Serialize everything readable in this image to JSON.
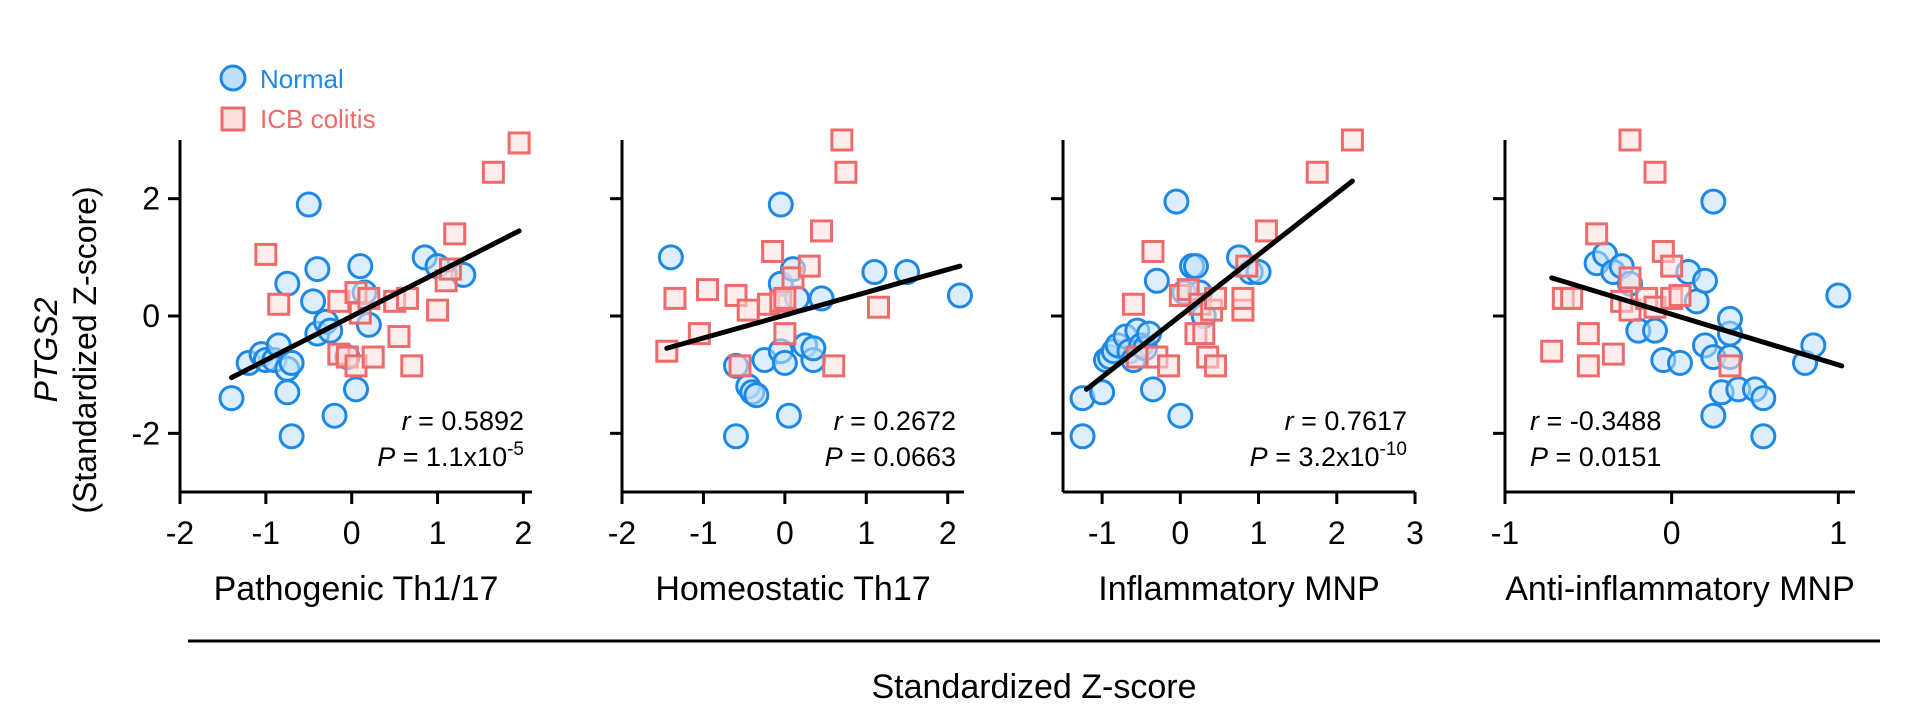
{
  "colors": {
    "normal_stroke": "#1e88e5",
    "normal_fill": "#bfe0fb",
    "icb_stroke": "#ee6b6b",
    "icb_fill": "#fbdede",
    "axis": "#000000",
    "text": "#000000"
  },
  "figure": {
    "ylabel_gene": "PTGS2",
    "ylabel_sub": "(Standardized Z-score)",
    "common_xlabel": "Standardized Z-score"
  },
  "legend": {
    "normal": "Normal",
    "icb": "ICB colitis",
    "position": "top-left"
  },
  "chart_data": [
    {
      "type": "scatter",
      "id": "p1",
      "xlabel": "Pathogenic Th1/17",
      "ylabel": "PTGS2 (Standardized Z-score)",
      "xlim": [
        -2,
        2.1
      ],
      "ylim": [
        -3,
        3
      ],
      "xticks": [
        -2,
        -1,
        0,
        1,
        2
      ],
      "xtick_labels": [
        "-2",
        "-1",
        "0",
        "1",
        "2"
      ],
      "yticks": [
        -2,
        0,
        2
      ],
      "ytick_labels": [
        "-2",
        "0",
        "2"
      ],
      "show_yticks": true,
      "stats": {
        "r": "r = 0.5892",
        "p_main": "P = 1.1x10",
        "p_exp": "-5"
      },
      "stats_anchor": "bottom-right",
      "fit": {
        "x": [
          -1.4,
          1.95
        ],
        "y": [
          -1.05,
          1.45
        ]
      },
      "series": [
        {
          "name": "Normal",
          "points": [
            [
              -1.4,
              -1.4
            ],
            [
              -1.2,
              -0.8
            ],
            [
              -1.05,
              -0.65
            ],
            [
              -1.0,
              -0.75
            ],
            [
              -0.9,
              -0.75
            ],
            [
              -0.85,
              -0.5
            ],
            [
              -0.75,
              -0.9
            ],
            [
              -0.7,
              -0.8
            ],
            [
              -0.75,
              -1.3
            ],
            [
              -0.7,
              -2.05
            ],
            [
              -0.75,
              0.55
            ],
            [
              -0.5,
              1.9
            ],
            [
              -0.4,
              0.8
            ],
            [
              -0.45,
              0.25
            ],
            [
              -0.4,
              -0.3
            ],
            [
              -0.3,
              -0.1
            ],
            [
              -0.25,
              -0.25
            ],
            [
              -0.2,
              -1.7
            ],
            [
              -0.05,
              -0.7
            ],
            [
              0.05,
              -1.25
            ],
            [
              0.1,
              0.85
            ],
            [
              0.15,
              0.4
            ],
            [
              0.2,
              -0.15
            ],
            [
              0.85,
              1.0
            ],
            [
              1.0,
              0.85
            ],
            [
              1.3,
              0.7
            ]
          ]
        },
        {
          "name": "ICB colitis",
          "points": [
            [
              -1.0,
              1.05
            ],
            [
              -0.85,
              0.2
            ],
            [
              -0.15,
              0.25
            ],
            [
              -0.15,
              -0.65
            ],
            [
              -0.05,
              -0.7
            ],
            [
              0.05,
              0.4
            ],
            [
              0.05,
              -0.85
            ],
            [
              0.1,
              0.05
            ],
            [
              0.2,
              0.3
            ],
            [
              0.25,
              -0.7
            ],
            [
              0.5,
              0.25
            ],
            [
              0.55,
              -0.35
            ],
            [
              0.65,
              0.3
            ],
            [
              0.7,
              -0.85
            ],
            [
              1.0,
              0.1
            ],
            [
              1.1,
              0.6
            ],
            [
              1.15,
              0.8
            ],
            [
              1.2,
              1.4
            ],
            [
              1.65,
              2.45
            ],
            [
              1.95,
              2.95
            ]
          ]
        }
      ]
    },
    {
      "type": "scatter",
      "id": "p2",
      "xlabel": "Homeostatic Th17",
      "ylabel": "PTGS2 (Standardized Z-score)",
      "xlim": [
        -2,
        2.2
      ],
      "ylim": [
        -3,
        3
      ],
      "xticks": [
        -2,
        -1,
        0,
        1,
        2
      ],
      "xtick_labels": [
        "-2",
        "-1",
        "0",
        "1",
        "2"
      ],
      "yticks": [
        -2,
        0,
        2
      ],
      "ytick_labels": [],
      "show_yticks": true,
      "stats": {
        "r": "r = 0.2672",
        "p_main": "P = 0.0663",
        "p_exp": ""
      },
      "stats_anchor": "bottom-right",
      "fit": {
        "x": [
          -1.45,
          2.15
        ],
        "y": [
          -0.55,
          0.85
        ]
      },
      "series": [
        {
          "name": "Normal",
          "points": [
            [
              -1.4,
              1.0
            ],
            [
              -0.6,
              -0.85
            ],
            [
              -0.6,
              -2.05
            ],
            [
              -0.45,
              -1.2
            ],
            [
              -0.4,
              -1.3
            ],
            [
              -0.35,
              -1.35
            ],
            [
              -0.25,
              -0.75
            ],
            [
              -0.05,
              1.9
            ],
            [
              -0.05,
              0.55
            ],
            [
              -0.05,
              -0.6
            ],
            [
              0.0,
              -0.8
            ],
            [
              0.05,
              -1.7
            ],
            [
              0.1,
              0.8
            ],
            [
              0.15,
              0.3
            ],
            [
              0.25,
              -0.5
            ],
            [
              0.35,
              -0.75
            ],
            [
              0.35,
              -0.55
            ],
            [
              0.45,
              0.3
            ],
            [
              1.1,
              0.75
            ],
            [
              1.5,
              0.75
            ],
            [
              2.15,
              0.35
            ]
          ]
        },
        {
          "name": "ICB colitis",
          "points": [
            [
              -1.45,
              -0.6
            ],
            [
              -1.35,
              0.3
            ],
            [
              -1.05,
              -0.3
            ],
            [
              -0.95,
              0.45
            ],
            [
              -0.6,
              0.35
            ],
            [
              -0.55,
              -0.85
            ],
            [
              -0.45,
              0.1
            ],
            [
              -0.2,
              0.2
            ],
            [
              -0.15,
              1.1
            ],
            [
              -0.05,
              0.25
            ],
            [
              0.0,
              0.3
            ],
            [
              0.0,
              -0.3
            ],
            [
              0.1,
              0.65
            ],
            [
              0.3,
              0.85
            ],
            [
              0.45,
              1.45
            ],
            [
              0.6,
              -0.85
            ],
            [
              0.7,
              3.0
            ],
            [
              0.75,
              2.45
            ],
            [
              1.15,
              0.15
            ]
          ]
        }
      ]
    },
    {
      "type": "scatter",
      "id": "p3",
      "xlabel": "Inflammatory MNP",
      "ylabel": "PTGS2 (Standardized Z-score)",
      "xlim": [
        -1.5,
        3
      ],
      "ylim": [
        -3,
        3
      ],
      "xticks": [
        -1,
        0,
        1,
        2,
        3
      ],
      "xtick_labels": [
        "-1",
        "0",
        "1",
        "2",
        "3"
      ],
      "yticks": [
        -2,
        0,
        2
      ],
      "ytick_labels": [],
      "show_yticks": true,
      "stats": {
        "r": "r = 0.7617",
        "p_main": "P = 3.2x10",
        "p_exp": "-10"
      },
      "stats_anchor": "bottom-right",
      "fit": {
        "x": [
          -1.2,
          2.2
        ],
        "y": [
          -1.25,
          2.3
        ]
      },
      "series": [
        {
          "name": "Normal",
          "points": [
            [
              -1.25,
              -1.4
            ],
            [
              -1.25,
              -2.05
            ],
            [
              -1.0,
              -1.3
            ],
            [
              -0.95,
              -0.75
            ],
            [
              -0.9,
              -0.7
            ],
            [
              -0.85,
              -0.6
            ],
            [
              -0.8,
              -0.5
            ],
            [
              -0.7,
              -0.35
            ],
            [
              -0.65,
              -0.6
            ],
            [
              -0.6,
              -0.75
            ],
            [
              -0.55,
              -0.25
            ],
            [
              -0.5,
              -0.5
            ],
            [
              -0.45,
              -0.55
            ],
            [
              -0.4,
              -0.3
            ],
            [
              -0.35,
              -1.25
            ],
            [
              -0.3,
              0.6
            ],
            [
              -0.05,
              1.95
            ],
            [
              0.0,
              -1.7
            ],
            [
              0.05,
              0.4
            ],
            [
              0.15,
              0.85
            ],
            [
              0.2,
              0.85
            ],
            [
              0.25,
              0.4
            ],
            [
              0.3,
              0.0
            ],
            [
              0.75,
              1.0
            ],
            [
              0.9,
              0.75
            ],
            [
              1.0,
              0.75
            ]
          ]
        },
        {
          "name": "ICB colitis",
          "points": [
            [
              -0.6,
              0.2
            ],
            [
              -0.55,
              -0.7
            ],
            [
              -0.35,
              1.1
            ],
            [
              -0.3,
              -0.7
            ],
            [
              -0.15,
              -0.85
            ],
            [
              0.0,
              0.35
            ],
            [
              0.1,
              0.45
            ],
            [
              0.2,
              -0.3
            ],
            [
              0.25,
              0.2
            ],
            [
              0.3,
              -0.3
            ],
            [
              0.35,
              -0.7
            ],
            [
              0.4,
              0.1
            ],
            [
              0.45,
              0.3
            ],
            [
              0.45,
              -0.85
            ],
            [
              0.8,
              0.1
            ],
            [
              0.8,
              0.3
            ],
            [
              0.85,
              0.85
            ],
            [
              1.1,
              1.45
            ],
            [
              1.75,
              2.45
            ],
            [
              2.2,
              3.0
            ]
          ]
        }
      ]
    },
    {
      "type": "scatter",
      "id": "p4",
      "xlabel": "Anti-inflammatory MNP",
      "ylabel": "PTGS2 (Standardized Z-score)",
      "xlim": [
        -1,
        1.1
      ],
      "ylim": [
        -3,
        3
      ],
      "xticks": [
        -1,
        0,
        1
      ],
      "xtick_labels": [
        "-1",
        "0",
        "1"
      ],
      "yticks": [
        -2,
        0,
        2
      ],
      "ytick_labels": [],
      "show_yticks": true,
      "stats": {
        "r": "r = -0.3488",
        "p_main": "P = 0.0151",
        "p_exp": ""
      },
      "stats_anchor": "bottom-left",
      "fit": {
        "x": [
          -0.72,
          1.02
        ],
        "y": [
          0.65,
          -0.85
        ]
      },
      "series": [
        {
          "name": "Normal",
          "points": [
            [
              -0.45,
              0.9
            ],
            [
              -0.4,
              1.05
            ],
            [
              -0.35,
              0.75
            ],
            [
              -0.3,
              0.85
            ],
            [
              -0.25,
              0.55
            ],
            [
              -0.2,
              -0.25
            ],
            [
              -0.1,
              -0.25
            ],
            [
              -0.05,
              -0.75
            ],
            [
              0.05,
              -0.8
            ],
            [
              0.1,
              0.75
            ],
            [
              0.15,
              0.25
            ],
            [
              0.2,
              0.6
            ],
            [
              0.2,
              -0.5
            ],
            [
              0.25,
              1.95
            ],
            [
              0.25,
              -0.7
            ],
            [
              0.25,
              -1.7
            ],
            [
              0.3,
              -1.3
            ],
            [
              0.35,
              -0.3
            ],
            [
              0.35,
              -0.7
            ],
            [
              0.35,
              -0.05
            ],
            [
              0.4,
              -1.25
            ],
            [
              0.5,
              -1.25
            ],
            [
              0.55,
              -1.4
            ],
            [
              0.55,
              -2.05
            ],
            [
              0.8,
              -0.8
            ],
            [
              0.85,
              -0.5
            ],
            [
              1.0,
              0.35
            ]
          ]
        },
        {
          "name": "ICB colitis",
          "points": [
            [
              -0.72,
              -0.6
            ],
            [
              -0.65,
              0.3
            ],
            [
              -0.6,
              0.3
            ],
            [
              -0.5,
              -0.3
            ],
            [
              -0.5,
              -0.85
            ],
            [
              -0.45,
              1.4
            ],
            [
              -0.35,
              -0.65
            ],
            [
              -0.3,
              0.25
            ],
            [
              -0.25,
              0.65
            ],
            [
              -0.25,
              0.1
            ],
            [
              -0.25,
              3.0
            ],
            [
              -0.15,
              0.3
            ],
            [
              -0.1,
              0.15
            ],
            [
              -0.1,
              2.45
            ],
            [
              -0.05,
              1.1
            ],
            [
              0.0,
              0.85
            ],
            [
              0.0,
              0.3
            ],
            [
              0.05,
              0.35
            ],
            [
              0.35,
              -0.85
            ]
          ]
        }
      ]
    }
  ]
}
